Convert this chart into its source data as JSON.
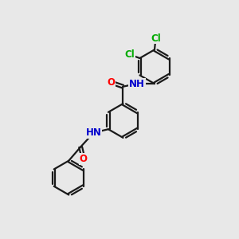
{
  "bg_color": "#e8e8e8",
  "bond_color": "#1a1a1a",
  "bond_width": 1.6,
  "dbo": 0.055,
  "atom_colors": {
    "O": "#ff0000",
    "N": "#0000cc",
    "Cl": "#00aa00",
    "C": "#1a1a1a"
  },
  "fs": 8.5
}
